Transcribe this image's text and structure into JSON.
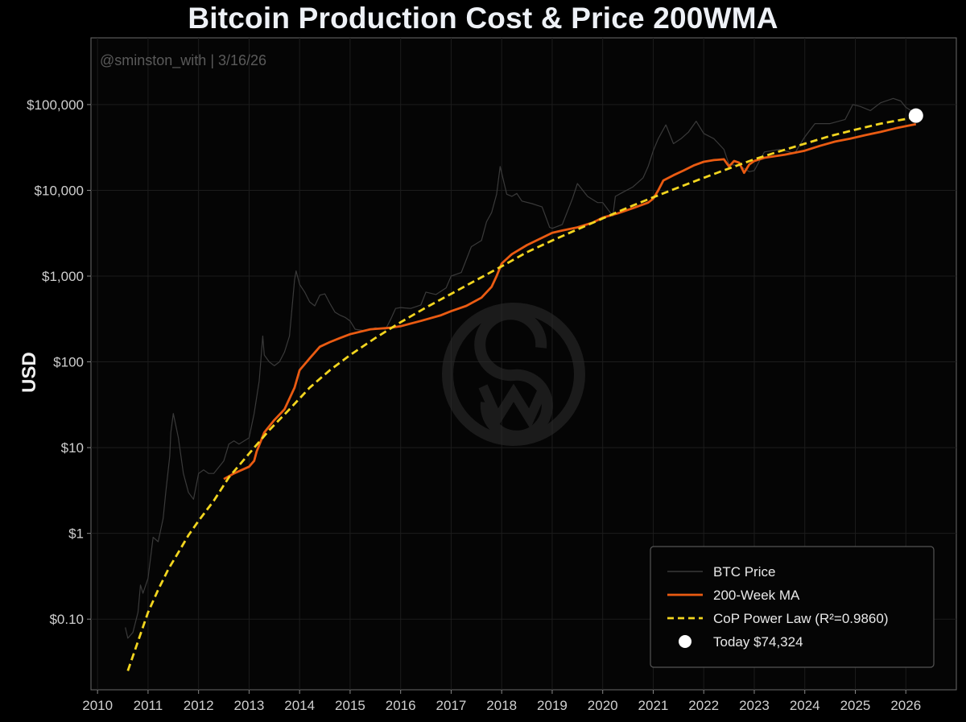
{
  "chart_data": {
    "type": "line",
    "title": "Bitcoin Production Cost & Price 200WMA",
    "ylabel": "USD",
    "xlabel": "",
    "yscale": "log",
    "ylim": [
      0.015,
      600000
    ],
    "xlim": [
      2009.87,
      2027.0
    ],
    "annotation": "@sminston_with  |  3/16/26",
    "grid": true,
    "legend_position": "bottom-right",
    "x_ticks": [
      2010,
      2011,
      2012,
      2013,
      2014,
      2015,
      2016,
      2017,
      2018,
      2019,
      2020,
      2021,
      2022,
      2023,
      2024,
      2025,
      2026
    ],
    "x_tick_labels": [
      "2010",
      "2011",
      "2012",
      "2013",
      "2014",
      "2015",
      "2016",
      "2017",
      "2018",
      "2019",
      "2020",
      "2021",
      "2022",
      "2023",
      "2024",
      "2025",
      "2026"
    ],
    "y_ticks": [
      0.1,
      1,
      10,
      100,
      1000,
      10000,
      100000
    ],
    "y_tick_labels": [
      "$0.10",
      "$1",
      "$10",
      "$100",
      "$1,000",
      "$10,000",
      "$100,000"
    ],
    "series": [
      {
        "name": "BTC Price",
        "color": "#3a3a3a",
        "style": "solid",
        "x": [
          2010.55,
          2010.6,
          2010.7,
          2010.8,
          2010.85,
          2010.9,
          2011.0,
          2011.1,
          2011.2,
          2011.3,
          2011.35,
          2011.43,
          2011.45,
          2011.5,
          2011.6,
          2011.7,
          2011.8,
          2011.9,
          2012.0,
          2012.1,
          2012.2,
          2012.3,
          2012.5,
          2012.6,
          2012.7,
          2012.8,
          2013.0,
          2013.1,
          2013.2,
          2013.27,
          2013.3,
          2013.4,
          2013.5,
          2013.6,
          2013.7,
          2013.8,
          2013.9,
          2013.93,
          2014.0,
          2014.1,
          2014.2,
          2014.3,
          2014.4,
          2014.5,
          2014.6,
          2014.7,
          2014.8,
          2014.9,
          2015.0,
          2015.1,
          2015.3,
          2015.5,
          2015.7,
          2015.8,
          2015.9,
          2016.0,
          2016.2,
          2016.4,
          2016.5,
          2016.7,
          2016.9,
          2017.0,
          2017.2,
          2017.4,
          2017.6,
          2017.7,
          2017.8,
          2017.9,
          2017.97,
          2018.05,
          2018.1,
          2018.2,
          2018.3,
          2018.4,
          2018.6,
          2018.8,
          2018.95,
          2019.0,
          2019.2,
          2019.4,
          2019.5,
          2019.7,
          2019.9,
          2020.0,
          2020.2,
          2020.25,
          2020.4,
          2020.6,
          2020.8,
          2020.9,
          2021.0,
          2021.1,
          2021.25,
          2021.4,
          2021.55,
          2021.7,
          2021.85,
          2022.0,
          2022.2,
          2022.4,
          2022.5,
          2022.7,
          2022.9,
          2023.0,
          2023.2,
          2023.5,
          2023.8,
          2024.0,
          2024.2,
          2024.5,
          2024.8,
          2024.95,
          2025.1,
          2025.3,
          2025.5,
          2025.75,
          2025.9,
          2026.0,
          2026.1,
          2026.2
        ],
        "y": [
          0.08,
          0.06,
          0.07,
          0.12,
          0.25,
          0.2,
          0.3,
          0.9,
          0.8,
          1.5,
          3,
          8,
          15,
          25,
          13,
          5,
          3,
          2.5,
          5,
          5.5,
          5,
          5,
          7,
          11,
          12,
          11,
          13,
          25,
          60,
          200,
          120,
          100,
          90,
          100,
          130,
          200,
          900,
          1150,
          800,
          650,
          500,
          450,
          600,
          620,
          480,
          380,
          350,
          330,
          300,
          240,
          230,
          250,
          240,
          310,
          420,
          430,
          420,
          460,
          650,
          610,
          730,
          1000,
          1100,
          2200,
          2600,
          4300,
          5500,
          9000,
          19000,
          12000,
          9000,
          8500,
          9200,
          7500,
          7000,
          6400,
          3700,
          3600,
          4000,
          8000,
          12000,
          8500,
          7200,
          7200,
          5000,
          8500,
          9500,
          11000,
          14000,
          19000,
          29000,
          40000,
          58000,
          35000,
          40000,
          48000,
          64000,
          46000,
          40000,
          30000,
          20000,
          19500,
          16500,
          17000,
          28000,
          30000,
          27000,
          42000,
          60000,
          60000,
          67000,
          100000,
          95000,
          85000,
          105000,
          118000,
          110000,
          93000,
          85000,
          74000
        ]
      },
      {
        "name": "200-Week MA",
        "color": "#ea5b12",
        "style": "solid",
        "x": [
          2012.5,
          2012.7,
          2013.0,
          2013.1,
          2013.15,
          2013.3,
          2013.5,
          2013.7,
          2013.9,
          2014.0,
          2014.2,
          2014.4,
          2014.6,
          2014.8,
          2015.0,
          2015.4,
          2015.8,
          2016.0,
          2016.4,
          2016.8,
          2017.0,
          2017.3,
          2017.6,
          2017.8,
          2017.9,
          2018.0,
          2018.2,
          2018.5,
          2018.8,
          2019.0,
          2019.2,
          2019.5,
          2019.8,
          2020.0,
          2020.3,
          2020.6,
          2020.9,
          2021.0,
          2021.1,
          2021.2,
          2021.4,
          2021.6,
          2021.8,
          2022.0,
          2022.2,
          2022.4,
          2022.5,
          2022.6,
          2022.7,
          2022.8,
          2022.9,
          2023.0,
          2023.2,
          2023.4,
          2023.6,
          2023.8,
          2024.0,
          2024.3,
          2024.6,
          2024.9,
          2025.2,
          2025.5,
          2025.8,
          2026.0,
          2026.2
        ],
        "y": [
          4.3,
          5,
          6,
          7,
          9,
          15,
          21,
          28,
          50,
          80,
          110,
          150,
          170,
          190,
          210,
          240,
          250,
          260,
          300,
          350,
          390,
          450,
          560,
          750,
          1000,
          1400,
          1800,
          2300,
          2800,
          3200,
          3400,
          3700,
          4200,
          4800,
          5400,
          6200,
          7200,
          8000,
          10000,
          13000,
          15000,
          17000,
          19500,
          21500,
          22500,
          23000,
          19000,
          22000,
          21000,
          16000,
          20000,
          22000,
          24000,
          25000,
          26000,
          27500,
          29000,
          33000,
          37000,
          40000,
          44000,
          48000,
          53000,
          56000,
          59000
        ]
      },
      {
        "name": "CoP Power Law (R²=0.9860)",
        "color": "#f2d51f",
        "style": "dashed",
        "x": [
          2010.6,
          2010.8,
          2011.0,
          2011.2,
          2011.4,
          2011.6,
          2011.8,
          2012.0,
          2012.3,
          2012.6,
          2013.0,
          2013.4,
          2013.8,
          2014.2,
          2014.6,
          2015.0,
          2015.5,
          2016.0,
          2016.5,
          2017.0,
          2017.5,
          2018.0,
          2018.5,
          2019.0,
          2019.5,
          2020.0,
          2020.5,
          2021.0,
          2021.5,
          2022.0,
          2022.5,
          2023.0,
          2023.5,
          2024.0,
          2024.5,
          2025.0,
          2025.5,
          2026.0,
          2026.2
        ],
        "y": [
          0.025,
          0.055,
          0.12,
          0.22,
          0.38,
          0.6,
          0.95,
          1.4,
          2.4,
          4.5,
          8.5,
          16,
          28,
          50,
          80,
          120,
          190,
          290,
          430,
          620,
          900,
          1300,
          1900,
          2600,
          3500,
          4700,
          6300,
          8300,
          10800,
          14000,
          18000,
          23000,
          28500,
          35000,
          43000,
          51000,
          60000,
          68000,
          72000
        ]
      }
    ],
    "marker": {
      "name": "Today $74,324",
      "x": 2026.2,
      "y": 74324,
      "color": "#ffffff"
    },
    "legend": [
      {
        "label": "BTC Price",
        "kind": "line",
        "color": "#3a3a3a",
        "dashed": false
      },
      {
        "label": "200-Week MA",
        "kind": "line",
        "color": "#ea5b12",
        "dashed": false
      },
      {
        "label": "CoP Power Law (R²=0.9860)",
        "kind": "line",
        "color": "#f2d51f",
        "dashed": true
      },
      {
        "label": "Today $74,324",
        "kind": "dot",
        "color": "#ffffff",
        "dashed": false
      }
    ]
  }
}
